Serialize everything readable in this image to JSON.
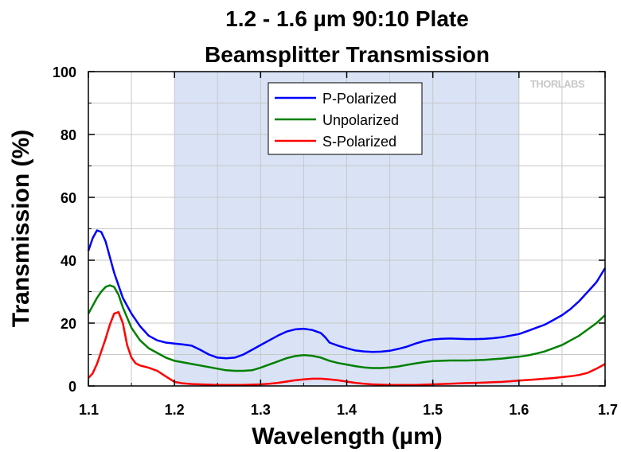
{
  "chart_data": {
    "type": "line",
    "title": [
      "1.2 - 1.6 µm 90:10 Plate",
      "Beamsplitter Transmission"
    ],
    "xlabel": "Wavelength (µm)",
    "ylabel": "Transmission (%)",
    "xlim": [
      1.1,
      1.7
    ],
    "ylim": [
      0,
      100
    ],
    "xticks": [
      "1.1",
      "1.2",
      "1.3",
      "1.4",
      "1.5",
      "1.6",
      "1.7"
    ],
    "yticks": [
      "0",
      "20",
      "40",
      "60",
      "80",
      "100"
    ],
    "grid": true,
    "shaded_region": [
      1.2,
      1.6
    ],
    "shaded_color": "#d9e3f5",
    "legend_position": "top-center",
    "watermark": "THORLABS",
    "series": [
      {
        "name": "P-Polarized",
        "color": "#0000ff",
        "x": [
          1.1,
          1.105,
          1.11,
          1.115,
          1.12,
          1.125,
          1.13,
          1.14,
          1.15,
          1.16,
          1.17,
          1.18,
          1.19,
          1.2,
          1.21,
          1.22,
          1.23,
          1.24,
          1.25,
          1.26,
          1.27,
          1.28,
          1.29,
          1.3,
          1.31,
          1.32,
          1.33,
          1.34,
          1.35,
          1.36,
          1.37,
          1.375,
          1.38,
          1.39,
          1.4,
          1.41,
          1.42,
          1.43,
          1.44,
          1.45,
          1.46,
          1.47,
          1.48,
          1.49,
          1.5,
          1.51,
          1.52,
          1.53,
          1.54,
          1.55,
          1.56,
          1.57,
          1.58,
          1.59,
          1.6,
          1.61,
          1.62,
          1.63,
          1.64,
          1.65,
          1.66,
          1.67,
          1.68,
          1.69,
          1.7
        ],
        "y": [
          43,
          47,
          49.5,
          49,
          46,
          41,
          36,
          28,
          23,
          19,
          16,
          14.5,
          13.8,
          13.5,
          13.2,
          12.8,
          11.5,
          10,
          9,
          8.8,
          9,
          10,
          11.5,
          13,
          14.5,
          16,
          17.3,
          18,
          18.2,
          17.8,
          16.8,
          15.5,
          13.8,
          12.8,
          12,
          11.3,
          11,
          10.8,
          10.9,
          11.2,
          11.8,
          12.5,
          13.5,
          14.3,
          14.8,
          15,
          15.1,
          15,
          14.9,
          14.9,
          15,
          15.2,
          15.5,
          16,
          16.5,
          17.5,
          18.5,
          19.5,
          21,
          22.5,
          24.5,
          27,
          30,
          33,
          37.5
        ]
      },
      {
        "name": "Unpolarized",
        "color": "#008000",
        "x": [
          1.1,
          1.105,
          1.11,
          1.115,
          1.12,
          1.125,
          1.13,
          1.135,
          1.14,
          1.15,
          1.16,
          1.17,
          1.18,
          1.19,
          1.2,
          1.21,
          1.22,
          1.23,
          1.24,
          1.25,
          1.26,
          1.27,
          1.28,
          1.29,
          1.3,
          1.31,
          1.32,
          1.33,
          1.34,
          1.35,
          1.36,
          1.37,
          1.38,
          1.39,
          1.4,
          1.41,
          1.42,
          1.43,
          1.44,
          1.45,
          1.46,
          1.47,
          1.48,
          1.49,
          1.5,
          1.51,
          1.52,
          1.53,
          1.54,
          1.55,
          1.56,
          1.57,
          1.58,
          1.59,
          1.6,
          1.61,
          1.62,
          1.63,
          1.64,
          1.65,
          1.66,
          1.67,
          1.68,
          1.69,
          1.7
        ],
        "y": [
          23,
          25.5,
          28,
          30,
          31.5,
          32,
          31.5,
          29,
          25,
          18.5,
          14.5,
          12,
          10.5,
          9,
          8,
          7.5,
          7,
          6.5,
          6,
          5.5,
          5,
          4.8,
          4.8,
          5,
          5.8,
          6.8,
          7.8,
          8.8,
          9.5,
          9.8,
          9.6,
          9,
          8,
          7.3,
          6.8,
          6.3,
          5.9,
          5.7,
          5.7,
          5.9,
          6.2,
          6.7,
          7.2,
          7.6,
          7.9,
          8,
          8.1,
          8.1,
          8.1,
          8.2,
          8.3,
          8.5,
          8.7,
          9,
          9.3,
          9.7,
          10.3,
          11,
          12,
          13,
          14.5,
          16,
          18,
          20,
          22.5
        ]
      },
      {
        "name": "S-Polarized",
        "color": "#ff0000",
        "x": [
          1.1,
          1.105,
          1.11,
          1.115,
          1.12,
          1.125,
          1.13,
          1.135,
          1.14,
          1.145,
          1.15,
          1.155,
          1.16,
          1.17,
          1.18,
          1.19,
          1.2,
          1.21,
          1.22,
          1.23,
          1.24,
          1.25,
          1.26,
          1.27,
          1.28,
          1.29,
          1.3,
          1.31,
          1.32,
          1.33,
          1.34,
          1.35,
          1.36,
          1.37,
          1.38,
          1.39,
          1.4,
          1.41,
          1.42,
          1.43,
          1.44,
          1.45,
          1.46,
          1.47,
          1.48,
          1.49,
          1.5,
          1.51,
          1.52,
          1.53,
          1.54,
          1.55,
          1.56,
          1.57,
          1.58,
          1.59,
          1.6,
          1.61,
          1.62,
          1.63,
          1.64,
          1.65,
          1.66,
          1.67,
          1.68,
          1.69,
          1.7
        ],
        "y": [
          2.5,
          4,
          7,
          11,
          15,
          19.5,
          23,
          23.5,
          20,
          13,
          9,
          7.2,
          6.5,
          5.8,
          4.8,
          3,
          1.3,
          0.8,
          0.6,
          0.5,
          0.4,
          0.3,
          0.3,
          0.3,
          0.3,
          0.4,
          0.5,
          0.7,
          1,
          1.4,
          1.8,
          2.1,
          2.3,
          2.3,
          2.1,
          1.8,
          1.4,
          1,
          0.7,
          0.5,
          0.4,
          0.3,
          0.3,
          0.3,
          0.3,
          0.4,
          0.5,
          0.6,
          0.7,
          0.8,
          0.9,
          1,
          1.1,
          1.2,
          1.3,
          1.5,
          1.7,
          1.9,
          2.1,
          2.3,
          2.5,
          2.8,
          3.1,
          3.5,
          4.2,
          5.5,
          7
        ]
      }
    ]
  }
}
